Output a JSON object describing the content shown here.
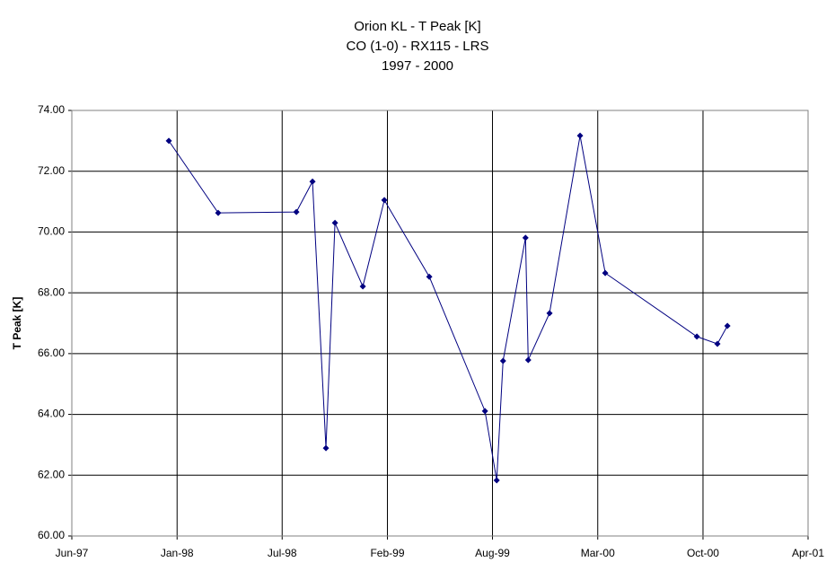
{
  "chart_data": {
    "type": "line",
    "title": [
      "Orion KL - T Peak [K]",
      "CO (1-0) - RX115 - LRS",
      "1997 - 2000"
    ],
    "y_label": "T Peak [K]",
    "x": [
      1997.955,
      1998.212,
      1998.619,
      1998.703,
      1998.773,
      1998.82,
      1998.965,
      1999.077,
      1999.311,
      1999.601,
      1999.662,
      1999.695,
      1999.812,
      1999.826,
      1999.937,
      2000.096,
      2000.227,
      2000.704,
      2000.811,
      2000.863
    ],
    "series": [
      {
        "name": "T Peak",
        "color": "#000080",
        "values": [
          73.0,
          70.63,
          70.66,
          71.66,
          62.89,
          70.3,
          68.21,
          71.05,
          68.53,
          64.11,
          61.83,
          65.76,
          69.81,
          65.79,
          67.33,
          73.17,
          68.65,
          66.56,
          66.32,
          66.91
        ]
      }
    ],
    "xlim": [
      1997.45,
      2001.283
    ],
    "xticks": [
      {
        "value": 1997.45,
        "label": "Jun-97"
      },
      {
        "value": 1997.998,
        "label": "Jan-98"
      },
      {
        "value": 1998.545,
        "label": "Jul-98"
      },
      {
        "value": 1999.093,
        "label": "Feb-99"
      },
      {
        "value": 1999.64,
        "label": "Aug-99"
      },
      {
        "value": 2000.188,
        "label": "Mar-00"
      },
      {
        "value": 2000.736,
        "label": "Oct-00"
      },
      {
        "value": 2001.283,
        "label": "Apr-01"
      }
    ],
    "ylim": [
      60,
      74
    ],
    "yticks": [
      {
        "value": 60,
        "label": "60.00"
      },
      {
        "value": 62,
        "label": "62.00"
      },
      {
        "value": 64,
        "label": "64.00"
      },
      {
        "value": 66,
        "label": "66.00"
      },
      {
        "value": 68,
        "label": "68.00"
      },
      {
        "value": 70,
        "label": "70.00"
      },
      {
        "value": 72,
        "label": "72.00"
      },
      {
        "value": 74,
        "label": "74.00"
      }
    ],
    "grid": true
  }
}
